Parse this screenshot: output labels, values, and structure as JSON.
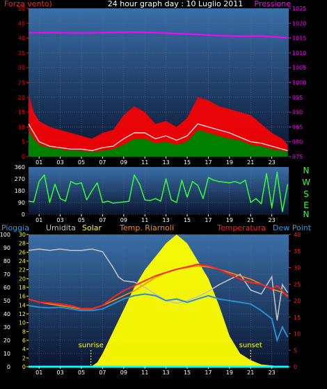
{
  "colors": {
    "background": "#000000",
    "panel_top": "#3a6fa8",
    "panel_bottom": "#0a1530",
    "grid": "#5a6f90",
    "wind_red": "#ff0000",
    "wind_green": "#008000",
    "wind_white": "#ffffff",
    "pressure": "#ff00ff",
    "direction": "#33ff33",
    "humidity": "#c0c0c0",
    "solar": "#ffff00",
    "riarnoli": "#ff8c00",
    "temperature": "#ff2222",
    "dewpoint": "#2a8fd0",
    "rain": "#00ffff",
    "axis_text": "#ffffff"
  },
  "header": {
    "title": "24 hour graph day : 10 Luglio 2011",
    "left_label": "Forza vento)",
    "right_label": "Pressione"
  },
  "compass": [
    "N",
    "W",
    "S",
    "E",
    "N"
  ],
  "legend": {
    "rain": "Pioggia",
    "humidity": "Umidita",
    "solar": "Solar",
    "riarnoli": "Temp. Riarnoli",
    "temperature": "Temperatura",
    "dewpoint": "Dew Point"
  },
  "sun": {
    "sunrise_label": "sunrise",
    "sunset_label": "sunset",
    "sunrise_hour": 5.9,
    "sunset_hour": 21.0
  },
  "chart_data": [
    {
      "type": "area",
      "xlabel": "",
      "ylabel": "",
      "xlim": [
        0,
        24.6
      ],
      "ylim": [
        0,
        50
      ],
      "y2lim": [
        975,
        1025
      ],
      "x_ticks": [
        "01",
        "03",
        "05",
        "07",
        "09",
        "11",
        "13",
        "15",
        "17",
        "19",
        "21",
        "23"
      ],
      "y_ticks": [
        0,
        5,
        10,
        15,
        20,
        25,
        30,
        35,
        40,
        45,
        50
      ],
      "y2_ticks": [
        975,
        980,
        985,
        990,
        995,
        1000,
        1005,
        1010,
        1015,
        1020,
        1025
      ],
      "grid": true,
      "series": [
        {
          "name": "Forza vento",
          "axis": "left",
          "x": [
            0,
            0.5,
            1,
            2,
            3,
            4,
            5,
            6,
            7,
            8,
            9,
            10,
            11,
            12,
            13,
            14,
            15,
            16,
            17,
            18,
            19,
            20,
            21,
            22,
            23,
            24,
            24.5
          ],
          "values": [
            21,
            15,
            12,
            10,
            9,
            8,
            7,
            6,
            8,
            9,
            14,
            17,
            15,
            11,
            12,
            10,
            13,
            20,
            19,
            17,
            16,
            15,
            14,
            11,
            8,
            6,
            4
          ]
        },
        {
          "axis": "left",
          "x": [
            0,
            0.5,
            1,
            2,
            3,
            4,
            5,
            6,
            7,
            8,
            9,
            10,
            11,
            12,
            13,
            14,
            15,
            16,
            17,
            18,
            19,
            20,
            21,
            22,
            23,
            24,
            24.5
          ],
          "values": [
            9,
            6,
            4,
            3,
            2.5,
            2,
            2,
            1.5,
            2,
            2.5,
            4,
            6,
            6,
            4.5,
            5,
            4,
            5,
            9,
            8,
            7,
            6,
            5.5,
            4,
            3.5,
            2.5,
            2,
            1.5
          ]
        },
        {
          "axis": "left",
          "x": [
            0,
            0.5,
            1,
            2,
            3,
            4,
            5,
            6,
            7,
            8,
            9,
            10,
            11,
            12,
            13,
            14,
            15,
            16,
            17,
            18,
            19,
            20,
            21,
            22,
            23,
            24,
            24.5
          ],
          "values": [
            11,
            8,
            5,
            3.5,
            3,
            2.5,
            2.5,
            2,
            3,
            3.5,
            6,
            8,
            8,
            6,
            7,
            5.5,
            7,
            11,
            10,
            9,
            8,
            6.5,
            5,
            4.5,
            3.5,
            2.5,
            2
          ]
        },
        {
          "name": "Pressione",
          "axis": "right",
          "x": [
            0,
            2,
            4,
            6,
            8,
            10,
            12,
            14,
            16,
            18,
            20,
            22,
            24,
            24.5
          ],
          "values": [
            1016.7,
            1016.8,
            1016.7,
            1016.7,
            1016.9,
            1017.0,
            1016.8,
            1016.5,
            1016.2,
            1015.8,
            1015.6,
            1015.7,
            1015.2,
            1015.0
          ]
        }
      ]
    },
    {
      "type": "line",
      "xlabel": "",
      "ylabel": "",
      "xlim": [
        0,
        24.6
      ],
      "ylim": [
        0,
        360
      ],
      "y_ticks": [
        0,
        90,
        180,
        270,
        360
      ],
      "grid": true,
      "series": [
        {
          "name": "Direzione vento",
          "x": [
            0,
            0.5,
            1,
            1.5,
            2,
            2.5,
            3,
            3.5,
            4,
            4.5,
            5,
            5.5,
            6,
            6.5,
            7,
            7.5,
            8,
            8.5,
            9,
            9.5,
            10,
            10.5,
            11,
            11.5,
            12,
            12.5,
            13,
            13.5,
            14,
            14.5,
            15,
            15.5,
            16,
            16.5,
            17,
            17.5,
            18,
            18.5,
            19,
            19.5,
            20,
            20.5,
            21,
            21.5,
            22,
            22.5,
            23,
            23.5,
            24,
            24.5
          ],
          "values": [
            100,
            95,
            250,
            300,
            90,
            230,
            120,
            100,
            250,
            230,
            240,
            110,
            180,
            240,
            90,
            100,
            85,
            90,
            95,
            100,
            300,
            230,
            110,
            105,
            120,
            100,
            270,
            110,
            90,
            260,
            130,
            250,
            220,
            120,
            280,
            260,
            250,
            245,
            240,
            250,
            235,
            260,
            90,
            120,
            80,
            310,
            50,
            320,
            20,
            230
          ]
        }
      ]
    },
    {
      "type": "line",
      "xlabel": "",
      "ylabel": "",
      "xlim": [
        0,
        24.6
      ],
      "ylim": [
        0,
        100
      ],
      "y2lim": [
        0,
        40
      ],
      "y_ticks": [
        0,
        10,
        20,
        30,
        40,
        50,
        60,
        70,
        80,
        90,
        100
      ],
      "y_ticks_mid": [
        0,
        2,
        4,
        6,
        8,
        10,
        12,
        14,
        16,
        18,
        20,
        22,
        24,
        26,
        28,
        30
      ],
      "y2_ticks": [
        0,
        5,
        10,
        15,
        20,
        25,
        30,
        35,
        40
      ],
      "grid": true,
      "series": [
        {
          "name": "Umidita",
          "axis": "left",
          "x": [
            0,
            1,
            2,
            3,
            4,
            5,
            6,
            7,
            8,
            8.5,
            9,
            10,
            11,
            12,
            13,
            14,
            15,
            16,
            17,
            18,
            19,
            20,
            21,
            22,
            23,
            23.5,
            24,
            24.5
          ],
          "values": [
            88,
            89,
            88,
            89,
            88,
            88,
            89,
            87,
            75,
            68,
            65,
            64,
            60,
            55,
            50,
            48,
            50,
            53,
            57,
            62,
            66,
            70,
            58,
            55,
            68,
            35,
            62,
            56
          ]
        },
        {
          "name": "Solar",
          "axis": "mid",
          "x": [
            0,
            5.9,
            6.5,
            7,
            8,
            9,
            10,
            11,
            12,
            13,
            13.5,
            14,
            14.5,
            15,
            15.5,
            16,
            17,
            18,
            19,
            20,
            21,
            22,
            23,
            24,
            24.6
          ],
          "values": [
            0,
            0,
            1,
            3,
            8,
            13,
            18,
            22,
            25,
            28,
            29,
            30,
            29,
            28,
            26,
            24,
            20,
            14,
            7,
            3,
            1.5,
            0.5,
            0.3,
            0,
            0
          ]
        },
        {
          "name": "Temp. Riarnoli",
          "axis": "right",
          "x": [
            0,
            1,
            2,
            3,
            4,
            5,
            6,
            7,
            8,
            9,
            10,
            11,
            12,
            13,
            14,
            15,
            16,
            17,
            18,
            19,
            20,
            21,
            22,
            23,
            24,
            24.5
          ],
          "values": [
            20.5,
            19.5,
            19,
            18.5,
            18,
            17.5,
            17.5,
            18.5,
            20,
            21.5,
            23,
            25,
            27,
            28.5,
            29.5,
            30,
            30.5,
            30.2,
            29.5,
            28.5,
            27.5,
            26.5,
            25,
            23.5,
            22.5,
            21.5
          ]
        },
        {
          "name": "Temperatura",
          "axis": "right",
          "x": [
            0,
            1,
            2,
            3,
            4,
            5,
            6,
            7,
            8,
            9,
            10,
            11,
            12,
            13,
            14,
            15,
            16,
            17,
            18,
            19,
            20,
            21,
            22,
            23,
            23.5,
            24,
            24.5
          ],
          "values": [
            20.5,
            19.5,
            19.3,
            19,
            18.5,
            17.6,
            17.6,
            18.5,
            21,
            23,
            24.5,
            26,
            27.5,
            28.5,
            29.5,
            30.2,
            31,
            30.5,
            29.5,
            28,
            26.5,
            25.5,
            25,
            23.5,
            24.5,
            23,
            21
          ]
        },
        {
          "name": "Dew Point",
          "axis": "right",
          "x": [
            0,
            1,
            2,
            3,
            4,
            5,
            6,
            7,
            8,
            9,
            10,
            11,
            12,
            13,
            14,
            15,
            16,
            17,
            18,
            19,
            20,
            21,
            22,
            23,
            23.5,
            24,
            24.5
          ],
          "values": [
            18.5,
            18,
            17.8,
            18,
            17.5,
            17,
            17,
            17.5,
            19,
            20.5,
            21.5,
            22,
            21.5,
            20,
            20.5,
            19.5,
            20.5,
            21.5,
            20.5,
            20,
            19.5,
            19,
            17,
            14.5,
            8,
            12,
            9
          ]
        },
        {
          "name": "Pioggia",
          "axis": "left",
          "x": [
            0,
            24.6
          ],
          "values": [
            0,
            0
          ]
        }
      ]
    }
  ]
}
